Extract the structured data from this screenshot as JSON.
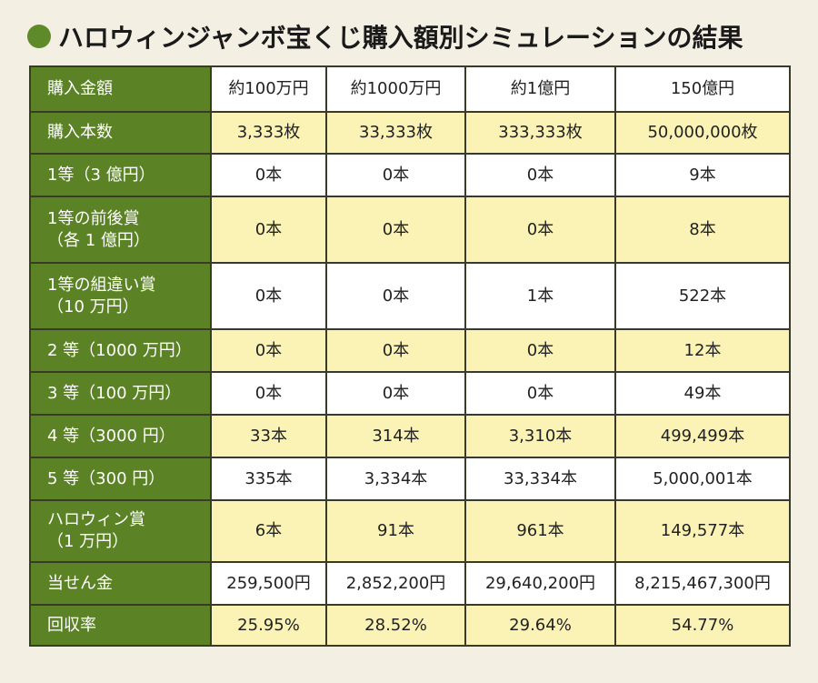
{
  "title": "ハロウィンジャンボ宝くじ購入額別シミュレーションの結果",
  "header_row": {
    "label": "購入金額",
    "cols": [
      "約100万円",
      "約1000万円",
      "約1億円",
      "150億円"
    ]
  },
  "rows": [
    {
      "label": "購入本数",
      "values": [
        "3,333枚",
        "33,333枚",
        "333,333枚",
        "50,000,000枚"
      ]
    },
    {
      "label": "1等（3 億円）",
      "values": [
        "0本",
        "0本",
        "0本",
        "9本"
      ]
    },
    {
      "label": "1等の前後賞\n（各 1 億円）",
      "values": [
        "0本",
        "0本",
        "0本",
        "8本"
      ]
    },
    {
      "label": "1等の組違い賞\n（10 万円）",
      "values": [
        "0本",
        "0本",
        "1本",
        "522本"
      ]
    },
    {
      "label": "2 等（1000 万円）",
      "values": [
        "0本",
        "0本",
        "0本",
        "12本"
      ]
    },
    {
      "label": "3 等（100 万円）",
      "values": [
        "0本",
        "0本",
        "0本",
        "49本"
      ]
    },
    {
      "label": "4 等（3000 円）",
      "values": [
        "33本",
        "314本",
        "3,310本",
        "499,499本"
      ]
    },
    {
      "label": "5 等（300 円）",
      "values": [
        "335本",
        "3,334本",
        "33,334本",
        "5,000,001本"
      ]
    },
    {
      "label": "ハロウィン賞\n（1 万円）",
      "values": [
        "6本",
        "91本",
        "961本",
        "149,577本"
      ]
    },
    {
      "label": "当せん金",
      "values": [
        "259,500円",
        "2,852,200円",
        "29,640,200円",
        "8,215,467,300円"
      ]
    },
    {
      "label": "回収率",
      "values": [
        "25.95%",
        "28.52%",
        "29.64%",
        "54.77%"
      ]
    }
  ]
}
